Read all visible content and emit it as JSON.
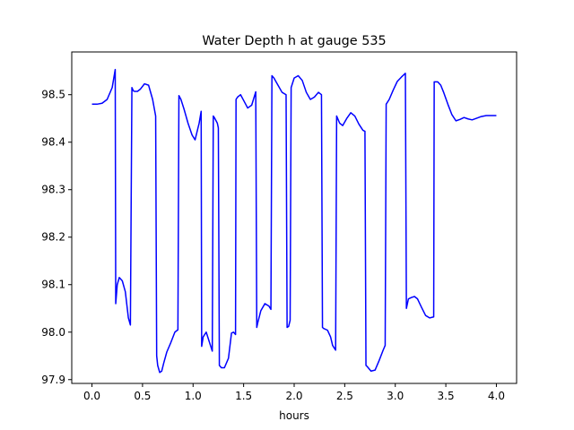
{
  "chart_data": {
    "type": "line",
    "title": "Water Depth h at gauge 535",
    "xlabel": "hours",
    "ylabel": "",
    "xlim": [
      -0.2,
      4.2
    ],
    "ylim": [
      97.892,
      98.59
    ],
    "xticks": [
      0.0,
      0.5,
      1.0,
      1.5,
      2.0,
      2.5,
      3.0,
      3.5,
      4.0
    ],
    "xtick_labels": [
      "0.0",
      "0.5",
      "1.0",
      "1.5",
      "2.0",
      "2.5",
      "3.0",
      "3.5",
      "4.0"
    ],
    "yticks": [
      97.9,
      98.0,
      98.1,
      98.2,
      98.3,
      98.4,
      98.5
    ],
    "ytick_labels": [
      "97.9",
      "98.0",
      "98.1",
      "98.2",
      "98.3",
      "98.4",
      "98.5"
    ],
    "grid": false,
    "legend": "none",
    "series": [
      {
        "color": "#0000ff",
        "x": [
          0.0,
          0.05,
          0.1,
          0.15,
          0.2,
          0.23,
          0.235,
          0.25,
          0.27,
          0.3,
          0.33,
          0.36,
          0.38,
          0.395,
          0.41,
          0.42,
          0.45,
          0.48,
          0.52,
          0.56,
          0.6,
          0.63,
          0.64,
          0.65,
          0.67,
          0.69,
          0.71,
          0.74,
          0.78,
          0.82,
          0.85,
          0.86,
          0.88,
          0.91,
          0.95,
          0.99,
          1.02,
          1.06,
          1.08,
          1.085,
          1.1,
          1.13,
          1.16,
          1.19,
          1.2,
          1.21,
          1.24,
          1.25,
          1.26,
          1.28,
          1.31,
          1.35,
          1.38,
          1.4,
          1.42,
          1.425,
          1.44,
          1.47,
          1.5,
          1.54,
          1.58,
          1.62,
          1.63,
          1.64,
          1.67,
          1.71,
          1.75,
          1.77,
          1.78,
          1.8,
          1.84,
          1.88,
          1.92,
          1.93,
          1.945,
          1.96,
          1.97,
          2.0,
          2.04,
          2.08,
          2.12,
          2.16,
          2.2,
          2.24,
          2.27,
          2.28,
          2.29,
          2.33,
          2.36,
          2.38,
          2.41,
          2.42,
          2.45,
          2.48,
          2.52,
          2.56,
          2.6,
          2.64,
          2.68,
          2.7,
          2.71,
          2.72,
          2.76,
          2.8,
          2.84,
          2.88,
          2.9,
          2.91,
          2.94,
          2.98,
          3.02,
          3.06,
          3.1,
          3.11,
          3.13,
          3.16,
          3.19,
          3.22,
          3.26,
          3.3,
          3.34,
          3.38,
          3.385,
          3.42,
          3.45,
          3.48,
          3.52,
          3.56,
          3.6,
          3.64,
          3.68,
          3.72,
          3.76,
          3.8,
          3.85,
          3.9,
          3.95,
          4.0
        ],
        "values": [
          98.48,
          98.48,
          98.482,
          98.49,
          98.515,
          98.553,
          98.06,
          98.1,
          98.115,
          98.108,
          98.085,
          98.03,
          98.015,
          98.515,
          98.508,
          98.507,
          98.507,
          98.512,
          98.523,
          98.52,
          98.49,
          98.455,
          97.95,
          97.93,
          97.915,
          97.918,
          97.935,
          97.958,
          97.978,
          98.0,
          98.005,
          98.498,
          98.49,
          98.47,
          98.44,
          98.415,
          98.405,
          98.44,
          98.465,
          97.97,
          97.99,
          98.0,
          97.98,
          97.96,
          98.455,
          98.452,
          98.44,
          98.43,
          97.93,
          97.925,
          97.925,
          97.945,
          97.998,
          98.0,
          97.995,
          98.49,
          98.495,
          98.5,
          98.488,
          98.472,
          98.478,
          98.506,
          98.01,
          98.02,
          98.045,
          98.06,
          98.055,
          98.048,
          98.54,
          98.535,
          98.52,
          98.505,
          98.5,
          98.01,
          98.012,
          98.025,
          98.515,
          98.535,
          98.54,
          98.53,
          98.505,
          98.49,
          98.495,
          98.505,
          98.5,
          98.01,
          98.008,
          98.004,
          97.99,
          97.972,
          97.962,
          98.455,
          98.44,
          98.435,
          98.45,
          98.462,
          98.455,
          98.438,
          98.425,
          98.423,
          97.93,
          97.928,
          97.918,
          97.92,
          97.94,
          97.962,
          97.972,
          98.48,
          98.49,
          98.51,
          98.528,
          98.537,
          98.545,
          98.05,
          98.07,
          98.073,
          98.075,
          98.07,
          98.052,
          98.035,
          98.03,
          98.032,
          98.527,
          98.527,
          98.52,
          98.504,
          98.48,
          98.458,
          98.445,
          98.448,
          98.452,
          98.449,
          98.447,
          98.45,
          98.454,
          98.456,
          98.456,
          98.456
        ]
      }
    ]
  }
}
